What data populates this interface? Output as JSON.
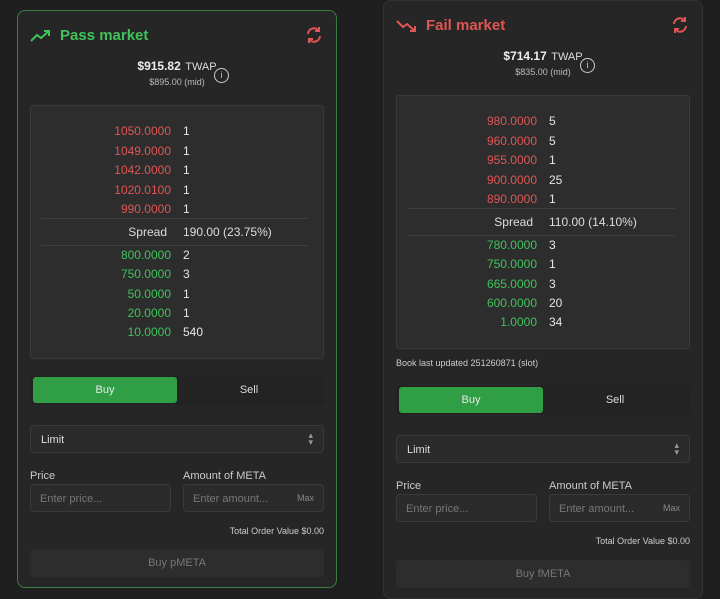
{
  "pass": {
    "title": "Pass market",
    "twap_price": "$915.82",
    "twap_label": "TWAP",
    "mid": "$895.00 (mid)",
    "asks": [
      {
        "price": "1050.0000",
        "size": "1"
      },
      {
        "price": "1049.0000",
        "size": "1"
      },
      {
        "price": "1042.0000",
        "size": "1"
      },
      {
        "price": "1020.0100",
        "size": "1"
      },
      {
        "price": "990.0000",
        "size": "1"
      }
    ],
    "spread_label": "Spread",
    "spread_value": "190.00 (23.75%)",
    "bids": [
      {
        "price": "800.0000",
        "size": "2"
      },
      {
        "price": "750.0000",
        "size": "3"
      },
      {
        "price": "50.0000",
        "size": "1"
      },
      {
        "price": "20.0000",
        "size": "1"
      },
      {
        "price": "10.0000",
        "size": "540"
      }
    ],
    "buy_tab": "Buy",
    "sell_tab": "Sell",
    "order_type": "Limit",
    "price_label": "Price",
    "price_placeholder": "Enter price...",
    "amount_label": "Amount of META",
    "amount_placeholder": "Enter amount...",
    "max_label": "Max",
    "total": "Total Order Value $0.00",
    "submit": "Buy pMETA"
  },
  "fail": {
    "title": "Fail market",
    "twap_price": "$714.17",
    "twap_label": "TWAP",
    "mid": "$835.00 (mid)",
    "asks": [
      {
        "price": "980.0000",
        "size": "5"
      },
      {
        "price": "960.0000",
        "size": "5"
      },
      {
        "price": "955.0000",
        "size": "1"
      },
      {
        "price": "900.0000",
        "size": "25"
      },
      {
        "price": "890.0000",
        "size": "1"
      }
    ],
    "spread_label": "Spread",
    "spread_value": "110.00 (14.10%)",
    "bids": [
      {
        "price": "780.0000",
        "size": "3"
      },
      {
        "price": "750.0000",
        "size": "1"
      },
      {
        "price": "665.0000",
        "size": "3"
      },
      {
        "price": "600.0000",
        "size": "20"
      },
      {
        "price": "1.0000",
        "size": "34"
      }
    ],
    "book_updated": "Book last updated 251260871 (slot)",
    "buy_tab": "Buy",
    "sell_tab": "Sell",
    "order_type": "Limit",
    "price_label": "Price",
    "price_placeholder": "Enter price...",
    "amount_label": "Amount of META",
    "amount_placeholder": "Enter amount...",
    "max_label": "Max",
    "total": "Total Order Value $0.00",
    "submit": "Buy fMETA"
  },
  "colors": {
    "pass": "#3fc35a",
    "fail": "#e05555",
    "buy": "#2f9e44"
  },
  "icons": {
    "pass": "trending-up-icon",
    "fail": "trending-down-icon",
    "refresh": "refresh-icon",
    "info": "info-icon",
    "chevron": "chevron-updown-icon"
  }
}
